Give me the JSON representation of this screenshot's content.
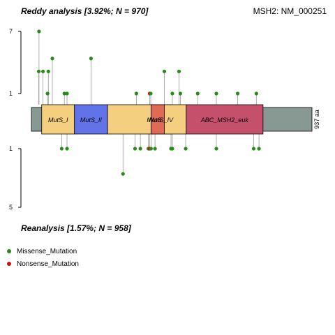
{
  "header": {
    "top_title": "Reddy analysis [3.92%; N = 970]",
    "gene_label": "MSH2: NM_000251",
    "bottom_title": "Reanalysis [1.57%; N = 958]"
  },
  "legend": {
    "items": [
      {
        "label": "Missense_Mutation",
        "color": "#2a8a1c"
      },
      {
        "label": "Nonsense_Mutation",
        "color": "#cc1111"
      }
    ]
  },
  "chart_data": {
    "type": "lollipop",
    "protein_length": 937,
    "length_label": "937 aa",
    "y_axis_top": {
      "ticks": [
        "7",
        "1"
      ],
      "values": [
        7,
        1
      ]
    },
    "y_axis_bottom": {
      "ticks": [
        "1",
        "5"
      ],
      "values": [
        1,
        5
      ]
    },
    "domains": [
      {
        "name": "MutS_I",
        "start": 15,
        "end": 138,
        "color": "#f5cf80"
      },
      {
        "name": "MutS_II",
        "start": 138,
        "end": 262,
        "color": "#6272e8"
      },
      {
        "name": "MutS_III",
        "label": "MutS",
        "start": 262,
        "end": 475,
        "color": "#f5cf80"
      },
      {
        "name": "MutS_IV",
        "start": 425,
        "end": 500,
        "color": "#e06a54"
      },
      {
        "name": "MutS_V",
        "label": "",
        "start": 475,
        "end": 557,
        "color": "#f5cf80"
      },
      {
        "name": "ABC_MSH2_euk",
        "start": 557,
        "end": 845,
        "color": "#c4506b"
      }
    ],
    "top_mutations": [
      {
        "pos": 4,
        "count": 2,
        "type": "Missense_Mutation"
      },
      {
        "pos": 5,
        "count": 7,
        "type": "Missense_Mutation"
      },
      {
        "pos": 20,
        "count": 2,
        "type": "Missense_Mutation"
      },
      {
        "pos": 37,
        "count": 1,
        "type": "Missense_Mutation"
      },
      {
        "pos": 40,
        "count": 2,
        "type": "Missense_Mutation"
      },
      {
        "pos": 55,
        "count": 3,
        "type": "Missense_Mutation"
      },
      {
        "pos": 100,
        "count": 1,
        "type": "Missense_Mutation"
      },
      {
        "pos": 110,
        "count": 1,
        "type": "Missense_Mutation"
      },
      {
        "pos": 200,
        "count": 3,
        "type": "Missense_Mutation"
      },
      {
        "pos": 370,
        "count": 1,
        "type": "Missense_Mutation"
      },
      {
        "pos": 420,
        "count": 1,
        "type": "Nonsense_Mutation"
      },
      {
        "pos": 424,
        "count": 1,
        "type": "Missense_Mutation"
      },
      {
        "pos": 475,
        "count": 2,
        "type": "Missense_Mutation"
      },
      {
        "pos": 505,
        "count": 1,
        "type": "Missense_Mutation"
      },
      {
        "pos": 530,
        "count": 2,
        "type": "Missense_Mutation"
      },
      {
        "pos": 535,
        "count": 1,
        "type": "Missense_Mutation"
      },
      {
        "pos": 600,
        "count": 1,
        "type": "Missense_Mutation"
      },
      {
        "pos": 670,
        "count": 1,
        "type": "Missense_Mutation"
      },
      {
        "pos": 750,
        "count": 1,
        "type": "Missense_Mutation"
      },
      {
        "pos": 820,
        "count": 1,
        "type": "Missense_Mutation"
      }
    ],
    "bottom_mutations": [
      {
        "pos": 90,
        "count": 1,
        "type": "Missense_Mutation"
      },
      {
        "pos": 110,
        "count": 1,
        "type": "Missense_Mutation"
      },
      {
        "pos": 320,
        "count": 2,
        "type": "Missense_Mutation"
      },
      {
        "pos": 365,
        "count": 1,
        "type": "Missense_Mutation"
      },
      {
        "pos": 385,
        "count": 1,
        "type": "Missense_Mutation"
      },
      {
        "pos": 415,
        "count": 1,
        "type": "Missense_Mutation"
      },
      {
        "pos": 420,
        "count": 1,
        "type": "Nonsense_Mutation"
      },
      {
        "pos": 425,
        "count": 1,
        "type": "Missense_Mutation"
      },
      {
        "pos": 440,
        "count": 1,
        "type": "Missense_Mutation"
      },
      {
        "pos": 500,
        "count": 1,
        "type": "Missense_Mutation"
      },
      {
        "pos": 505,
        "count": 1,
        "type": "Missense_Mutation"
      },
      {
        "pos": 555,
        "count": 1,
        "type": "Missense_Mutation"
      },
      {
        "pos": 670,
        "count": 1,
        "type": "Missense_Mutation"
      },
      {
        "pos": 810,
        "count": 1,
        "type": "Missense_Mutation"
      },
      {
        "pos": 830,
        "count": 1,
        "type": "Missense_Mutation"
      }
    ]
  }
}
